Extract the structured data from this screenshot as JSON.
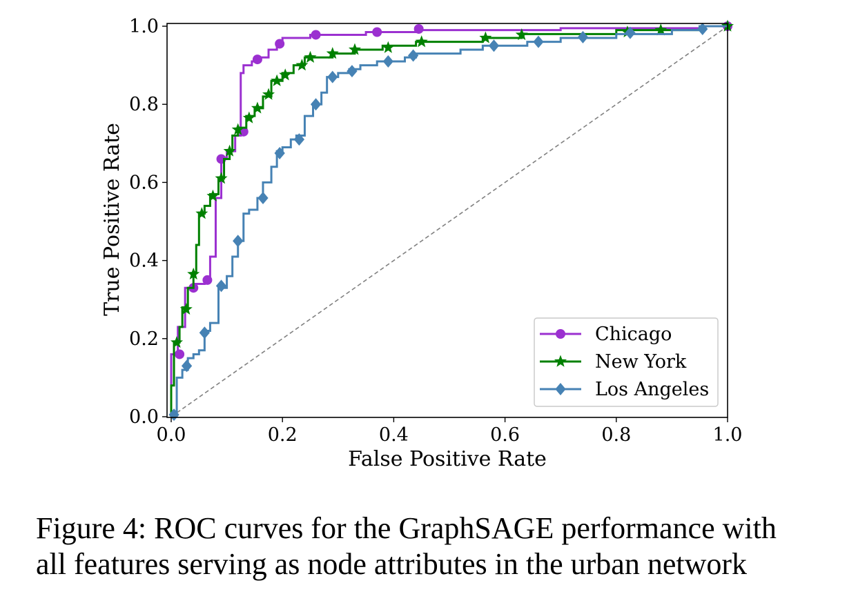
{
  "chart_data": {
    "type": "line",
    "xlabel": "False Positive Rate",
    "ylabel": "True Positive Rate",
    "xlim": [
      0.0,
      1.0
    ],
    "ylim": [
      0.0,
      1.0
    ],
    "xticks": [
      "0.0",
      "0.2",
      "0.4",
      "0.6",
      "0.8",
      "1.0"
    ],
    "yticks": [
      "0.0",
      "0.2",
      "0.4",
      "0.6",
      "0.8",
      "1.0"
    ],
    "grid": false,
    "legend_position": "lower-right",
    "reference_line": {
      "style": "dashed",
      "color": "#808080",
      "points": [
        [
          0,
          0
        ],
        [
          1,
          1
        ]
      ]
    },
    "series": [
      {
        "name": "Chicago",
        "color": "#9b30d0",
        "marker": "circle",
        "points": [
          [
            0,
            0
          ],
          [
            0,
            0.16
          ],
          [
            0.012,
            0.16
          ],
          [
            0.012,
            0.23
          ],
          [
            0.025,
            0.23
          ],
          [
            0.025,
            0.33
          ],
          [
            0.04,
            0.33
          ],
          [
            0.04,
            0.34
          ],
          [
            0.06,
            0.34
          ],
          [
            0.06,
            0.35
          ],
          [
            0.07,
            0.35
          ],
          [
            0.07,
            0.41
          ],
          [
            0.08,
            0.41
          ],
          [
            0.08,
            0.56
          ],
          [
            0.09,
            0.56
          ],
          [
            0.09,
            0.66
          ],
          [
            0.1,
            0.66
          ],
          [
            0.1,
            0.68
          ],
          [
            0.115,
            0.68
          ],
          [
            0.115,
            0.72
          ],
          [
            0.125,
            0.72
          ],
          [
            0.125,
            0.88
          ],
          [
            0.13,
            0.88
          ],
          [
            0.13,
            0.9
          ],
          [
            0.145,
            0.9
          ],
          [
            0.145,
            0.91
          ],
          [
            0.16,
            0.91
          ],
          [
            0.16,
            0.92
          ],
          [
            0.175,
            0.92
          ],
          [
            0.175,
            0.94
          ],
          [
            0.19,
            0.94
          ],
          [
            0.19,
            0.955
          ],
          [
            0.2,
            0.955
          ],
          [
            0.2,
            0.97
          ],
          [
            0.25,
            0.97
          ],
          [
            0.25,
            0.978
          ],
          [
            0.35,
            0.978
          ],
          [
            0.35,
            0.985
          ],
          [
            0.44,
            0.985
          ],
          [
            0.44,
            0.99
          ],
          [
            0.7,
            0.99
          ],
          [
            0.7,
            0.995
          ],
          [
            0.95,
            0.995
          ],
          [
            0.95,
            1.0
          ],
          [
            1.0,
            1.0
          ]
        ],
        "markers": [
          [
            0.015,
            0.16
          ],
          [
            0.04,
            0.33
          ],
          [
            0.065,
            0.35
          ],
          [
            0.09,
            0.66
          ],
          [
            0.13,
            0.73
          ],
          [
            0.155,
            0.915
          ],
          [
            0.195,
            0.955
          ],
          [
            0.26,
            0.978
          ],
          [
            0.37,
            0.985
          ],
          [
            0.445,
            0.993
          ],
          [
            1.0,
            1.0
          ]
        ]
      },
      {
        "name": "New York",
        "color": "#008000",
        "marker": "star",
        "points": [
          [
            0,
            0
          ],
          [
            0,
            0.08
          ],
          [
            0.005,
            0.08
          ],
          [
            0.005,
            0.19
          ],
          [
            0.015,
            0.19
          ],
          [
            0.015,
            0.23
          ],
          [
            0.02,
            0.23
          ],
          [
            0.02,
            0.28
          ],
          [
            0.03,
            0.28
          ],
          [
            0.03,
            0.33
          ],
          [
            0.04,
            0.33
          ],
          [
            0.04,
            0.37
          ],
          [
            0.045,
            0.37
          ],
          [
            0.045,
            0.44
          ],
          [
            0.05,
            0.44
          ],
          [
            0.05,
            0.52
          ],
          [
            0.06,
            0.52
          ],
          [
            0.06,
            0.54
          ],
          [
            0.07,
            0.54
          ],
          [
            0.07,
            0.57
          ],
          [
            0.085,
            0.57
          ],
          [
            0.085,
            0.61
          ],
          [
            0.095,
            0.61
          ],
          [
            0.095,
            0.66
          ],
          [
            0.105,
            0.66
          ],
          [
            0.105,
            0.68
          ],
          [
            0.11,
            0.68
          ],
          [
            0.11,
            0.72
          ],
          [
            0.12,
            0.72
          ],
          [
            0.12,
            0.74
          ],
          [
            0.135,
            0.74
          ],
          [
            0.135,
            0.77
          ],
          [
            0.15,
            0.77
          ],
          [
            0.15,
            0.79
          ],
          [
            0.165,
            0.79
          ],
          [
            0.165,
            0.82
          ],
          [
            0.18,
            0.82
          ],
          [
            0.18,
            0.86
          ],
          [
            0.2,
            0.86
          ],
          [
            0.2,
            0.88
          ],
          [
            0.22,
            0.88
          ],
          [
            0.22,
            0.9
          ],
          [
            0.24,
            0.9
          ],
          [
            0.24,
            0.92
          ],
          [
            0.29,
            0.92
          ],
          [
            0.29,
            0.93
          ],
          [
            0.33,
            0.93
          ],
          [
            0.33,
            0.94
          ],
          [
            0.38,
            0.94
          ],
          [
            0.38,
            0.95
          ],
          [
            0.44,
            0.95
          ],
          [
            0.44,
            0.96
          ],
          [
            0.56,
            0.96
          ],
          [
            0.56,
            0.97
          ],
          [
            0.63,
            0.97
          ],
          [
            0.63,
            0.98
          ],
          [
            0.8,
            0.98
          ],
          [
            0.8,
            0.99
          ],
          [
            0.95,
            0.99
          ],
          [
            0.95,
            1.0
          ],
          [
            1.0,
            1.0
          ]
        ],
        "markers": [
          [
            0.01,
            0.19
          ],
          [
            0.027,
            0.275
          ],
          [
            0.04,
            0.365
          ],
          [
            0.055,
            0.52
          ],
          [
            0.075,
            0.565
          ],
          [
            0.09,
            0.61
          ],
          [
            0.105,
            0.68
          ],
          [
            0.12,
            0.735
          ],
          [
            0.14,
            0.765
          ],
          [
            0.155,
            0.79
          ],
          [
            0.175,
            0.825
          ],
          [
            0.19,
            0.86
          ],
          [
            0.205,
            0.875
          ],
          [
            0.235,
            0.9
          ],
          [
            0.25,
            0.92
          ],
          [
            0.29,
            0.93
          ],
          [
            0.33,
            0.94
          ],
          [
            0.39,
            0.945
          ],
          [
            0.45,
            0.96
          ],
          [
            0.565,
            0.97
          ],
          [
            0.63,
            0.978
          ],
          [
            0.82,
            0.985
          ],
          [
            0.88,
            0.99
          ],
          [
            1.0,
            1.0
          ]
        ]
      },
      {
        "name": "Los Angeles",
        "color": "#4682b4",
        "marker": "diamond",
        "points": [
          [
            0,
            0
          ],
          [
            0.01,
            0
          ],
          [
            0.01,
            0.1
          ],
          [
            0.02,
            0.1
          ],
          [
            0.02,
            0.12
          ],
          [
            0.03,
            0.12
          ],
          [
            0.03,
            0.15
          ],
          [
            0.04,
            0.15
          ],
          [
            0.04,
            0.16
          ],
          [
            0.05,
            0.16
          ],
          [
            0.05,
            0.17
          ],
          [
            0.06,
            0.17
          ],
          [
            0.06,
            0.22
          ],
          [
            0.07,
            0.22
          ],
          [
            0.07,
            0.24
          ],
          [
            0.085,
            0.24
          ],
          [
            0.085,
            0.33
          ],
          [
            0.1,
            0.33
          ],
          [
            0.1,
            0.36
          ],
          [
            0.11,
            0.36
          ],
          [
            0.11,
            0.41
          ],
          [
            0.12,
            0.41
          ],
          [
            0.12,
            0.45
          ],
          [
            0.13,
            0.45
          ],
          [
            0.13,
            0.52
          ],
          [
            0.14,
            0.52
          ],
          [
            0.14,
            0.53
          ],
          [
            0.155,
            0.53
          ],
          [
            0.155,
            0.56
          ],
          [
            0.165,
            0.56
          ],
          [
            0.165,
            0.6
          ],
          [
            0.18,
            0.6
          ],
          [
            0.18,
            0.64
          ],
          [
            0.19,
            0.64
          ],
          [
            0.19,
            0.68
          ],
          [
            0.2,
            0.68
          ],
          [
            0.2,
            0.69
          ],
          [
            0.215,
            0.69
          ],
          [
            0.215,
            0.71
          ],
          [
            0.225,
            0.71
          ],
          [
            0.225,
            0.72
          ],
          [
            0.24,
            0.72
          ],
          [
            0.24,
            0.77
          ],
          [
            0.255,
            0.77
          ],
          [
            0.255,
            0.8
          ],
          [
            0.27,
            0.8
          ],
          [
            0.27,
            0.83
          ],
          [
            0.28,
            0.83
          ],
          [
            0.28,
            0.87
          ],
          [
            0.3,
            0.87
          ],
          [
            0.3,
            0.88
          ],
          [
            0.32,
            0.88
          ],
          [
            0.32,
            0.89
          ],
          [
            0.34,
            0.89
          ],
          [
            0.34,
            0.9
          ],
          [
            0.37,
            0.9
          ],
          [
            0.37,
            0.91
          ],
          [
            0.42,
            0.91
          ],
          [
            0.42,
            0.92
          ],
          [
            0.44,
            0.92
          ],
          [
            0.44,
            0.93
          ],
          [
            0.52,
            0.93
          ],
          [
            0.52,
            0.94
          ],
          [
            0.56,
            0.94
          ],
          [
            0.56,
            0.95
          ],
          [
            0.64,
            0.95
          ],
          [
            0.64,
            0.96
          ],
          [
            0.7,
            0.96
          ],
          [
            0.7,
            0.97
          ],
          [
            0.8,
            0.97
          ],
          [
            0.8,
            0.98
          ],
          [
            0.9,
            0.98
          ],
          [
            0.9,
            0.99
          ],
          [
            0.95,
            0.99
          ],
          [
            0.95,
            1.0
          ],
          [
            1.0,
            1.0
          ]
        ],
        "markers": [
          [
            0.005,
            0.005
          ],
          [
            0.028,
            0.13
          ],
          [
            0.06,
            0.215
          ],
          [
            0.09,
            0.335
          ],
          [
            0.12,
            0.45
          ],
          [
            0.165,
            0.56
          ],
          [
            0.195,
            0.675
          ],
          [
            0.23,
            0.71
          ],
          [
            0.26,
            0.8
          ],
          [
            0.29,
            0.87
          ],
          [
            0.325,
            0.885
          ],
          [
            0.39,
            0.91
          ],
          [
            0.435,
            0.925
          ],
          [
            0.58,
            0.95
          ],
          [
            0.66,
            0.96
          ],
          [
            0.74,
            0.972
          ],
          [
            0.825,
            0.983
          ],
          [
            0.955,
            0.993
          ]
        ]
      }
    ]
  },
  "caption": {
    "line1": "Figure 4: ROC curves for the GraphSAGE performance with",
    "line2": "all features serving as node attributes in the urban network"
  }
}
